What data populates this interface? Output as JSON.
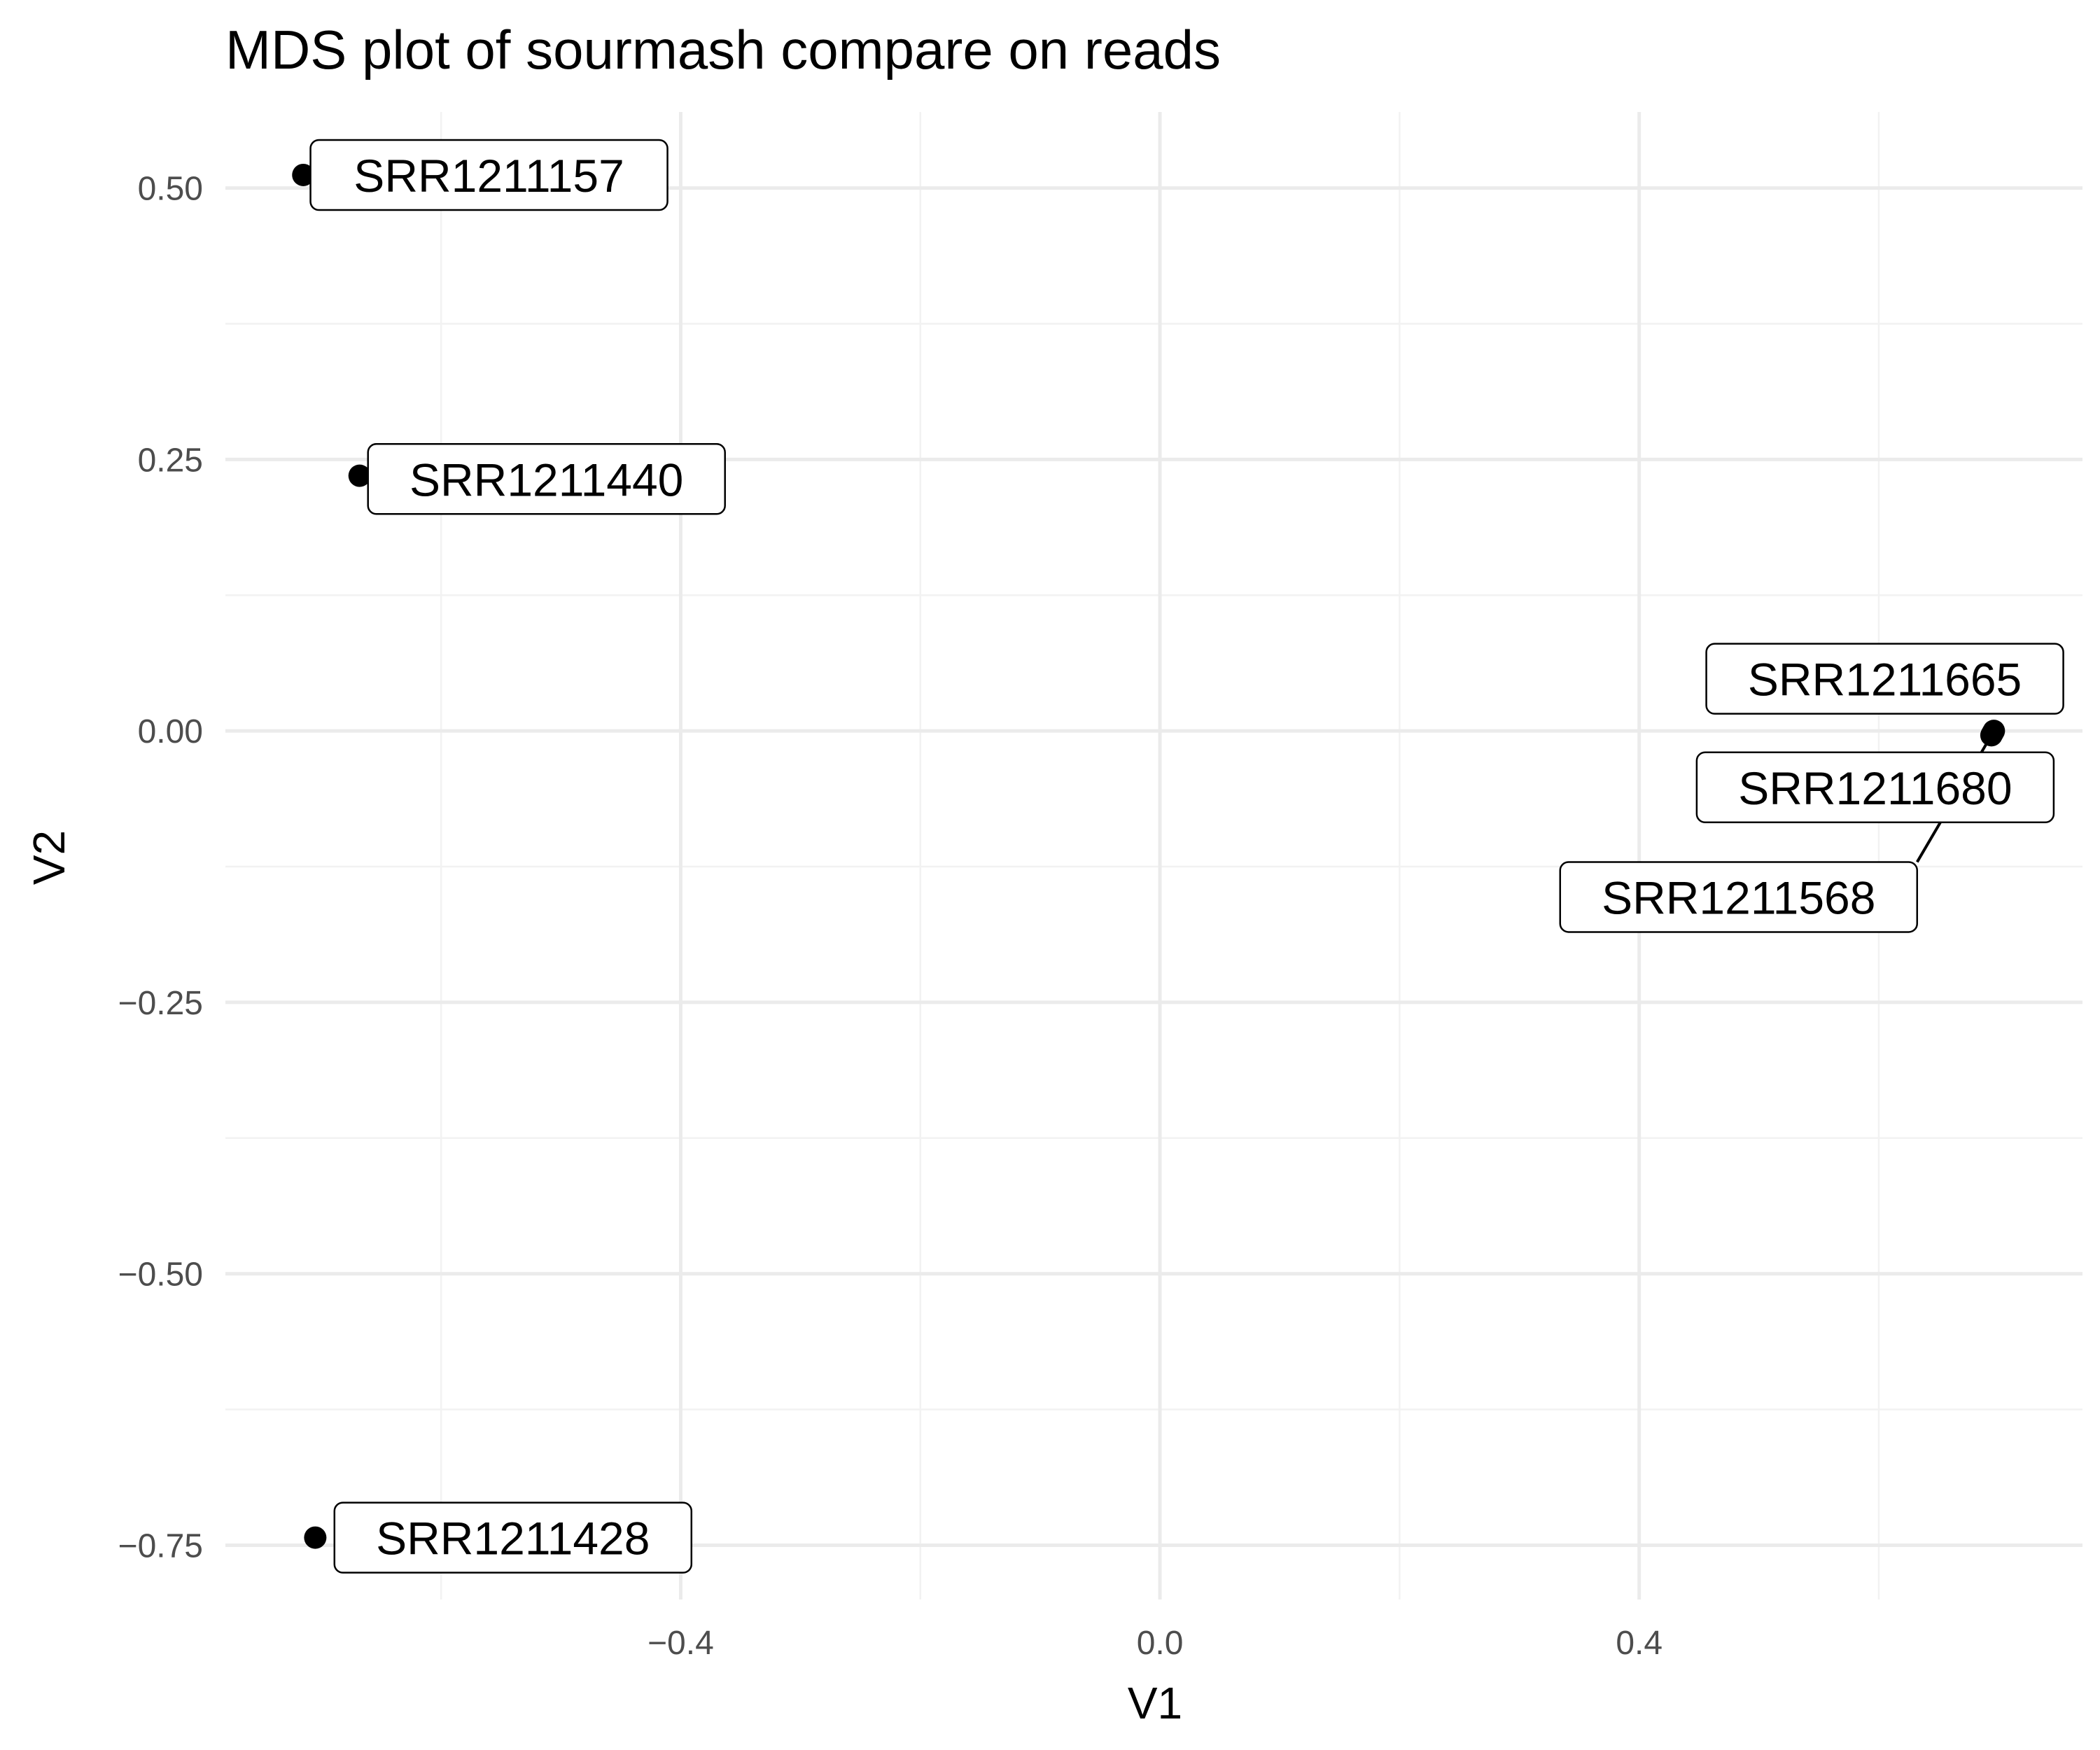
{
  "chart_data": {
    "type": "scatter",
    "title": "MDS plot of sourmash compare on reads",
    "xlabel": "V1",
    "ylabel": "V2",
    "xlim": [
      -0.78,
      0.77
    ],
    "ylim": [
      -0.8,
      0.57
    ],
    "x_ticks": [
      -0.4,
      0.0,
      0.4
    ],
    "x_tick_labels": [
      "−0.4",
      "0.0",
      "0.4"
    ],
    "x_minor_ticks": [
      -0.6,
      -0.2,
      0.2,
      0.6
    ],
    "y_ticks": [
      0.5,
      0.25,
      0.0,
      -0.25,
      -0.5,
      -0.75
    ],
    "y_tick_labels": [
      "0.50",
      "0.25",
      "0.00",
      "−0.25",
      "−0.50",
      "−0.75"
    ],
    "y_minor_ticks": [
      0.375,
      0.125,
      -0.125,
      -0.375,
      -0.625
    ],
    "grid": true,
    "points": [
      {
        "label": "SRR1211157",
        "x": -0.715,
        "y": 0.512,
        "label_x": -0.56,
        "label_y": 0.512
      },
      {
        "label": "SRR1211440",
        "x": -0.668,
        "y": 0.235,
        "label_x": -0.512,
        "label_y": 0.232
      },
      {
        "label": "SRR1211665",
        "x": 0.696,
        "y": 0.0,
        "label_x": 0.605,
        "label_y": 0.048
      },
      {
        "label": "SRR1211680",
        "x": 0.695,
        "y": -0.002,
        "label_x": 0.597,
        "label_y": -0.052
      },
      {
        "label": "SRR1211568",
        "x": 0.694,
        "y": -0.004,
        "label_x": 0.483,
        "label_y": -0.153
      },
      {
        "label": "SRR1211428",
        "x": -0.705,
        "y": -0.743,
        "label_x": -0.54,
        "label_y": -0.743
      }
    ]
  }
}
